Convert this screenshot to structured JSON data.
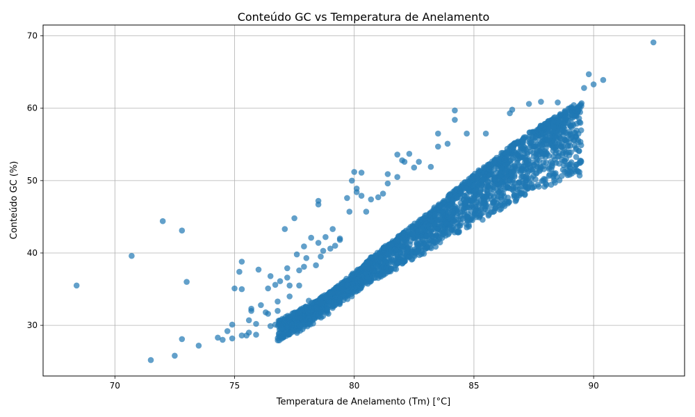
{
  "chart_data": {
    "type": "scatter",
    "title": "Conteúdo GC vs Temperatura de Anelamento",
    "xlabel": "Temperatura de Anelamento (Tm) [°C]",
    "ylabel": "Conteúdo GC (%)",
    "xlim": [
      67,
      93.8
    ],
    "ylim": [
      23,
      71.5
    ],
    "xticks": [
      70,
      75,
      80,
      85,
      90
    ],
    "yticks": [
      30,
      40,
      50,
      60,
      70
    ],
    "grid": true,
    "color": "#1f77b4",
    "opacity": 0.7,
    "points": [
      [
        68.4,
        35.5
      ],
      [
        70.7,
        39.6
      ],
      [
        72.0,
        44.4
      ],
      [
        72.8,
        43.1
      ],
      [
        73.0,
        36.0
      ],
      [
        71.5,
        25.2
      ],
      [
        72.5,
        25.8
      ],
      [
        72.8,
        28.1
      ],
      [
        73.5,
        27.2
      ],
      [
        74.3,
        28.3
      ],
      [
        74.5,
        28.0
      ],
      [
        74.7,
        29.2
      ],
      [
        74.9,
        28.2
      ],
      [
        74.9,
        30.1
      ],
      [
        75.0,
        35.1
      ],
      [
        75.2,
        37.4
      ],
      [
        75.3,
        35.0
      ],
      [
        75.3,
        38.8
      ],
      [
        75.3,
        28.6
      ],
      [
        75.5,
        28.6
      ],
      [
        75.6,
        29.0
      ],
      [
        75.6,
        30.7
      ],
      [
        75.7,
        32.3
      ],
      [
        75.7,
        32.0
      ],
      [
        75.9,
        30.2
      ],
      [
        75.9,
        28.7
      ],
      [
        76.0,
        37.7
      ],
      [
        76.1,
        32.8
      ],
      [
        76.3,
        31.8
      ],
      [
        76.4,
        31.6
      ],
      [
        76.4,
        35.1
      ],
      [
        76.5,
        36.8
      ],
      [
        76.5,
        29.9
      ],
      [
        76.7,
        35.6
      ],
      [
        76.7,
        30.1
      ],
      [
        76.8,
        33.3
      ],
      [
        76.8,
        32.0
      ],
      [
        76.9,
        36.1
      ],
      [
        77.0,
        30.9
      ],
      [
        77.1,
        43.3
      ],
      [
        77.2,
        37.9
      ],
      [
        77.2,
        36.6
      ],
      [
        77.3,
        35.5
      ],
      [
        77.3,
        34.0
      ],
      [
        77.5,
        44.8
      ],
      [
        77.6,
        39.8
      ],
      [
        77.7,
        37.6
      ],
      [
        77.7,
        35.5
      ],
      [
        77.9,
        40.9
      ],
      [
        77.9,
        38.1
      ],
      [
        78.0,
        39.3
      ],
      [
        78.1,
        33.4
      ],
      [
        78.2,
        42.1
      ],
      [
        78.4,
        38.3
      ],
      [
        78.5,
        47.2
      ],
      [
        78.5,
        46.7
      ],
      [
        78.5,
        41.4
      ],
      [
        78.6,
        39.5
      ],
      [
        78.7,
        40.3
      ],
      [
        78.8,
        42.2
      ],
      [
        79.0,
        40.6
      ],
      [
        79.1,
        43.3
      ],
      [
        79.2,
        41.0
      ],
      [
        79.4,
        41.8
      ],
      [
        79.4,
        42.0
      ],
      [
        79.7,
        47.6
      ],
      [
        79.8,
        45.7
      ],
      [
        79.9,
        50.0
      ],
      [
        80.0,
        51.2
      ],
      [
        80.1,
        48.9
      ],
      [
        80.1,
        48.4
      ],
      [
        80.3,
        51.1
      ],
      [
        80.3,
        47.9
      ],
      [
        80.5,
        45.7
      ],
      [
        80.7,
        47.4
      ],
      [
        81.0,
        47.7
      ],
      [
        81.2,
        48.2
      ],
      [
        81.4,
        50.9
      ],
      [
        81.4,
        49.6
      ],
      [
        81.8,
        50.5
      ],
      [
        81.8,
        53.6
      ],
      [
        82.0,
        52.8
      ],
      [
        82.1,
        52.6
      ],
      [
        82.3,
        53.7
      ],
      [
        82.5,
        51.8
      ],
      [
        82.7,
        52.6
      ],
      [
        83.2,
        51.9
      ],
      [
        83.5,
        54.7
      ],
      [
        83.5,
        56.5
      ],
      [
        83.9,
        55.1
      ],
      [
        84.2,
        59.7
      ],
      [
        84.2,
        58.4
      ],
      [
        84.7,
        56.5
      ],
      [
        85.5,
        56.5
      ],
      [
        86.5,
        59.3
      ],
      [
        86.6,
        59.8
      ],
      [
        87.3,
        60.6
      ],
      [
        87.8,
        60.9
      ],
      [
        88.5,
        60.8
      ],
      [
        89.6,
        62.8
      ],
      [
        89.8,
        64.7
      ],
      [
        90.0,
        63.3
      ],
      [
        90.4,
        63.9
      ],
      [
        92.5,
        69.1
      ]
    ],
    "dense_band": [
      [
        76.8,
        30.4
      ],
      [
        77.5,
        31.5
      ],
      [
        78.2,
        32.8
      ],
      [
        79.0,
        34.5
      ],
      [
        79.8,
        36.5
      ],
      [
        80.5,
        38.6
      ],
      [
        81.2,
        40.5
      ],
      [
        82.0,
        42.6
      ],
      [
        82.8,
        44.6
      ],
      [
        83.5,
        46.4
      ],
      [
        84.3,
        48.7
      ],
      [
        85.0,
        50.7
      ],
      [
        85.8,
        52.6
      ],
      [
        86.5,
        54.5
      ],
      [
        87.3,
        56.4
      ],
      [
        88.0,
        57.9
      ],
      [
        88.8,
        59.6
      ],
      [
        89.5,
        60.8
      ]
    ]
  }
}
